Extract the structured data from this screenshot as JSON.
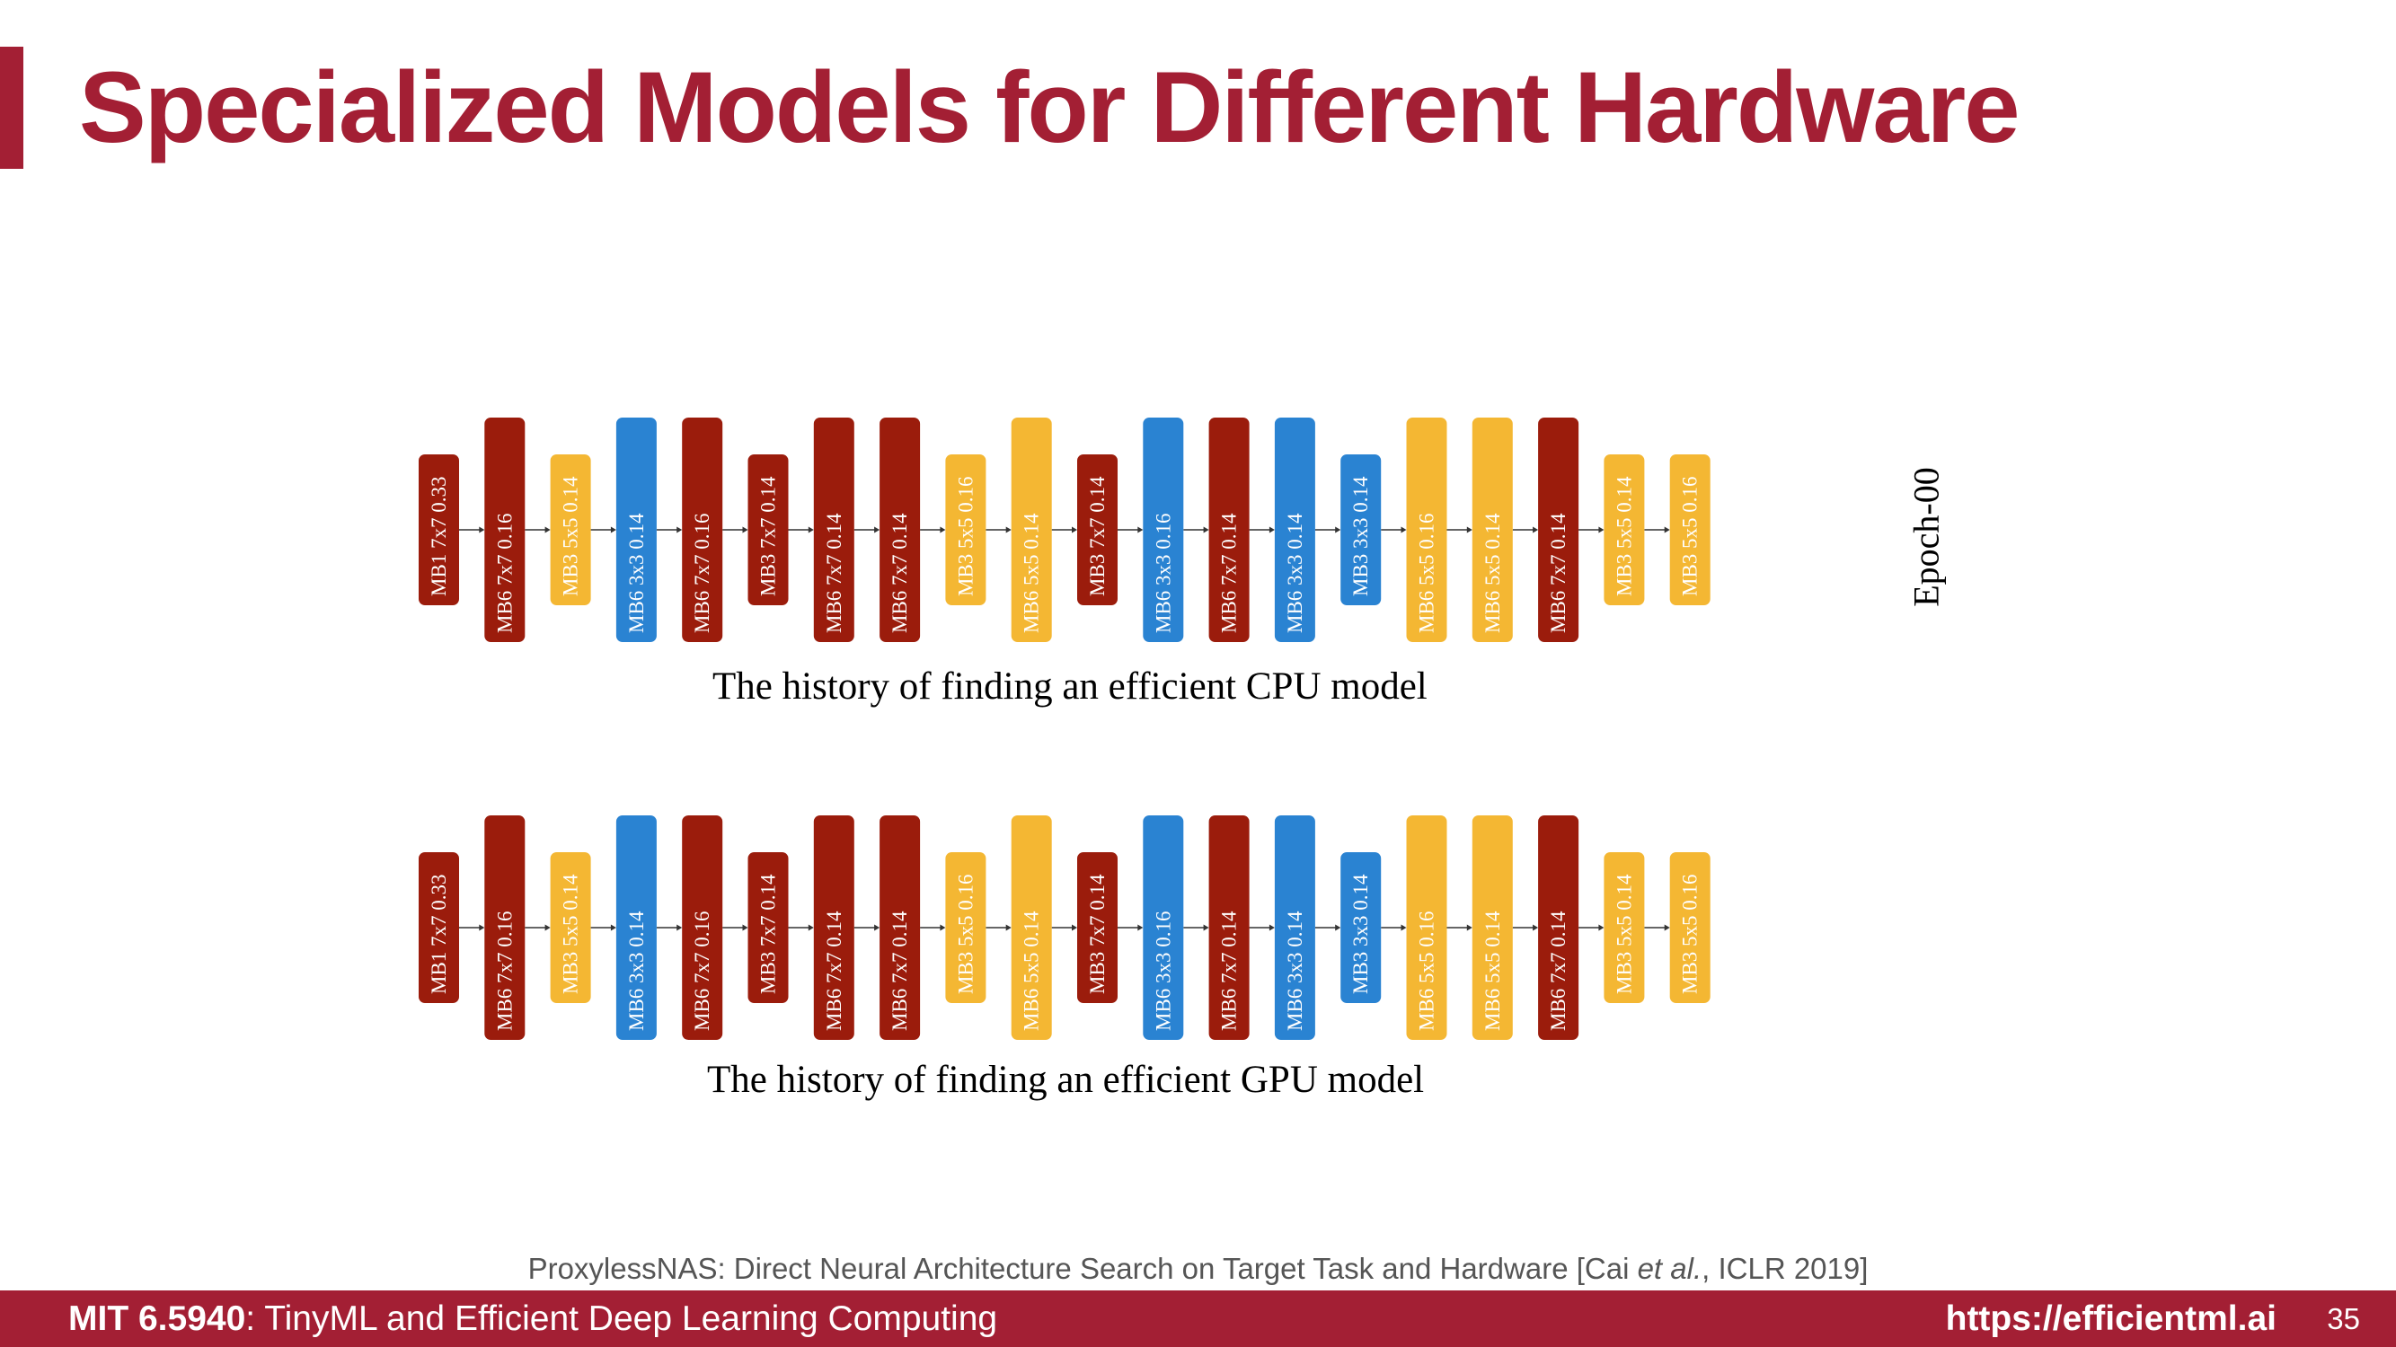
{
  "title": "Specialized Models for Different Hardware",
  "colors": {
    "accent": "#a31f34",
    "mb6_7x7": "#9b1c0c",
    "mb_5x5": "#f4b733",
    "mb_3x3": "#2a83d2"
  },
  "architectures": [
    {
      "caption": "The history of finding an efficient CPU model",
      "blocks": [
        {
          "label": "MB1 7x7 0.33",
          "color": "#9b1c0c",
          "size": "small"
        },
        {
          "label": "MB6 7x7 0.16",
          "color": "#9b1c0c",
          "size": "large"
        },
        {
          "label": "MB3 5x5 0.14",
          "color": "#f4b733",
          "size": "small"
        },
        {
          "label": "MB6 3x3 0.14",
          "color": "#2a83d2",
          "size": "large"
        },
        {
          "label": "MB6 7x7 0.16",
          "color": "#9b1c0c",
          "size": "large"
        },
        {
          "label": "MB3 7x7 0.14",
          "color": "#9b1c0c",
          "size": "small"
        },
        {
          "label": "MB6 7x7 0.14",
          "color": "#9b1c0c",
          "size": "large"
        },
        {
          "label": "MB6 7x7 0.14",
          "color": "#9b1c0c",
          "size": "large"
        },
        {
          "label": "MB3 5x5 0.16",
          "color": "#f4b733",
          "size": "small"
        },
        {
          "label": "MB6 5x5 0.14",
          "color": "#f4b733",
          "size": "large"
        },
        {
          "label": "MB3 7x7 0.14",
          "color": "#9b1c0c",
          "size": "small"
        },
        {
          "label": "MB6 3x3 0.16",
          "color": "#2a83d2",
          "size": "large"
        },
        {
          "label": "MB6 7x7 0.14",
          "color": "#9b1c0c",
          "size": "large"
        },
        {
          "label": "MB6 3x3 0.14",
          "color": "#2a83d2",
          "size": "large"
        },
        {
          "label": "MB3 3x3 0.14",
          "color": "#2a83d2",
          "size": "small"
        },
        {
          "label": "MB6 5x5 0.16",
          "color": "#f4b733",
          "size": "large"
        },
        {
          "label": "MB6 5x5 0.14",
          "color": "#f4b733",
          "size": "large"
        },
        {
          "label": "MB6 7x7 0.14",
          "color": "#9b1c0c",
          "size": "large"
        },
        {
          "label": "MB3 5x5 0.14",
          "color": "#f4b733",
          "size": "small"
        },
        {
          "label": "MB3 5x5 0.16",
          "color": "#f4b733",
          "size": "small"
        }
      ]
    },
    {
      "caption": "The history of finding an efficient GPU model",
      "blocks": [
        {
          "label": "MB1 7x7 0.33",
          "color": "#9b1c0c",
          "size": "small"
        },
        {
          "label": "MB6 7x7 0.16",
          "color": "#9b1c0c",
          "size": "large"
        },
        {
          "label": "MB3 5x5 0.14",
          "color": "#f4b733",
          "size": "small"
        },
        {
          "label": "MB6 3x3 0.14",
          "color": "#2a83d2",
          "size": "large"
        },
        {
          "label": "MB6 7x7 0.16",
          "color": "#9b1c0c",
          "size": "large"
        },
        {
          "label": "MB3 7x7 0.14",
          "color": "#9b1c0c",
          "size": "small"
        },
        {
          "label": "MB6 7x7 0.14",
          "color": "#9b1c0c",
          "size": "large"
        },
        {
          "label": "MB6 7x7 0.14",
          "color": "#9b1c0c",
          "size": "large"
        },
        {
          "label": "MB3 5x5 0.16",
          "color": "#f4b733",
          "size": "small"
        },
        {
          "label": "MB6 5x5 0.14",
          "color": "#f4b733",
          "size": "large"
        },
        {
          "label": "MB3 7x7 0.14",
          "color": "#9b1c0c",
          "size": "small"
        },
        {
          "label": "MB6 3x3 0.16",
          "color": "#2a83d2",
          "size": "large"
        },
        {
          "label": "MB6 7x7 0.14",
          "color": "#9b1c0c",
          "size": "large"
        },
        {
          "label": "MB6 3x3 0.14",
          "color": "#2a83d2",
          "size": "large"
        },
        {
          "label": "MB3 3x3 0.14",
          "color": "#2a83d2",
          "size": "small"
        },
        {
          "label": "MB6 5x5 0.16",
          "color": "#f4b733",
          "size": "large"
        },
        {
          "label": "MB6 5x5 0.14",
          "color": "#f4b733",
          "size": "large"
        },
        {
          "label": "MB6 7x7 0.14",
          "color": "#9b1c0c",
          "size": "large"
        },
        {
          "label": "MB3 5x5 0.14",
          "color": "#f4b733",
          "size": "small"
        },
        {
          "label": "MB3 5x5 0.16",
          "color": "#f4b733",
          "size": "small"
        }
      ]
    }
  ],
  "epoch_label": "Epoch-00",
  "citation": {
    "before": "ProxylessNAS: Direct Neural Architecture Search on Target Task and Hardware [Cai ",
    "italic": "et al.",
    "after": ", ICLR 2019]"
  },
  "footer": {
    "course_code": "MIT 6.5940",
    "course_name": ": TinyML and Efficient Deep Learning Computing",
    "url": "https://efficientml.ai",
    "page": "35"
  }
}
